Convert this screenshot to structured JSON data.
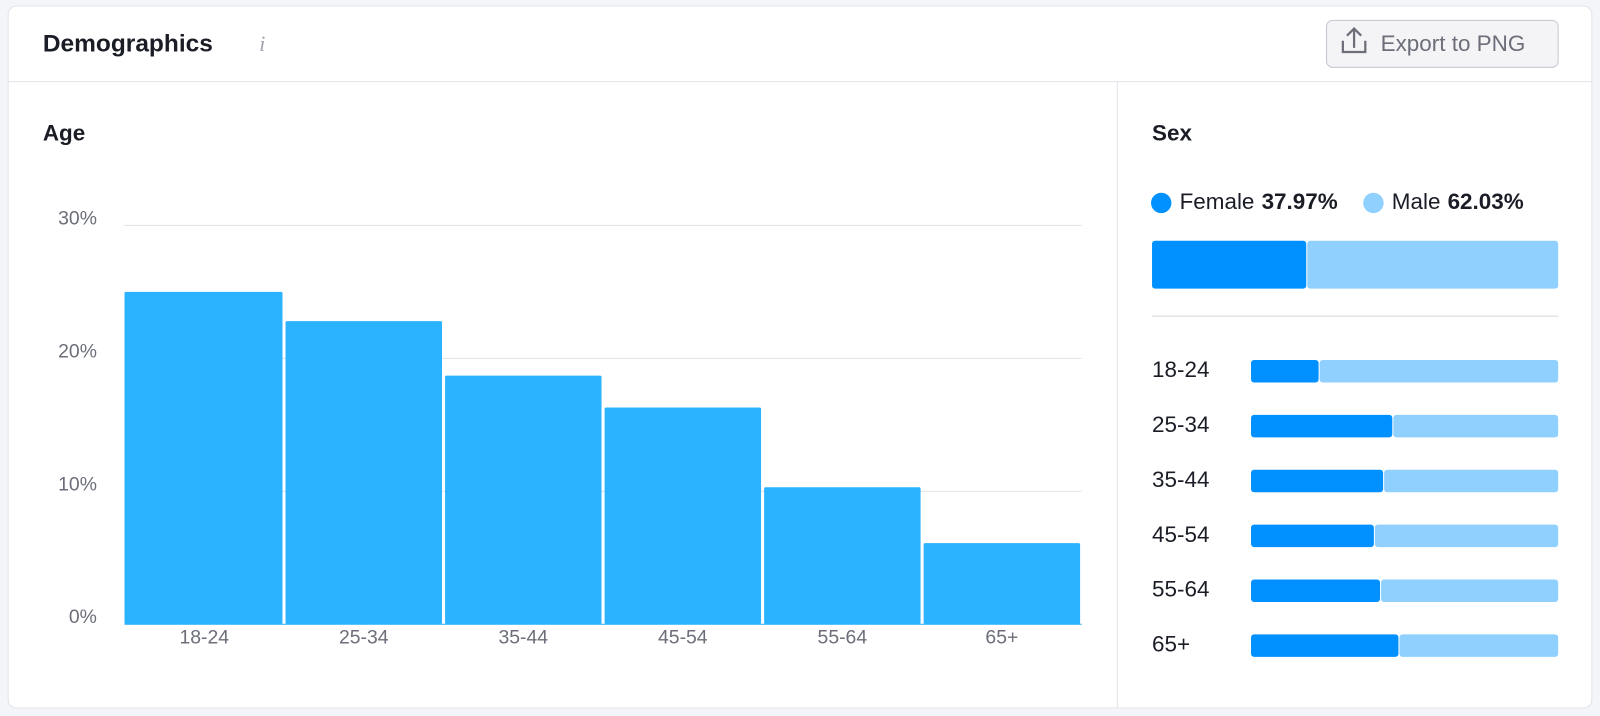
{
  "header": {
    "title": "Demographics",
    "button": "Export to PNG"
  },
  "chart_data": [
    {
      "type": "bar",
      "title": "Age",
      "categories": [
        "18-24",
        "25-34",
        "35-44",
        "45-54",
        "55-64",
        "65+"
      ],
      "values": [
        25.0,
        22.8,
        18.7,
        16.3,
        10.3,
        6.1
      ],
      "color": "#2bb3ff",
      "ylim": [
        0,
        30
      ],
      "yticks": [
        {
          "value": 0,
          "label": "0%"
        },
        {
          "value": 10,
          "label": "10%"
        },
        {
          "value": 20,
          "label": "20%"
        },
        {
          "value": 30,
          "label": "30%"
        }
      ],
      "grid": true
    },
    {
      "type": "stacked-bar-horizontal",
      "title": "Sex",
      "categories": [
        null,
        "18-24",
        "25-34",
        "35-44",
        "45-54",
        "55-64",
        "65+"
      ],
      "series": [
        {
          "name": "Female",
          "color": "#0090ff",
          "values": [
            37.97,
            22,
            46,
            43,
            40,
            42,
            48
          ],
          "value_labels": [
            "37.97%",
            null,
            null,
            null,
            null,
            null,
            null
          ]
        },
        {
          "name": "Male",
          "color": "#8fd0ff",
          "values": [
            62.03,
            78,
            54,
            57,
            60,
            58,
            52
          ],
          "value_labels": [
            "62.03%",
            null,
            null,
            null,
            null,
            null,
            null
          ]
        }
      ],
      "xlim": [
        0,
        100
      ]
    }
  ]
}
